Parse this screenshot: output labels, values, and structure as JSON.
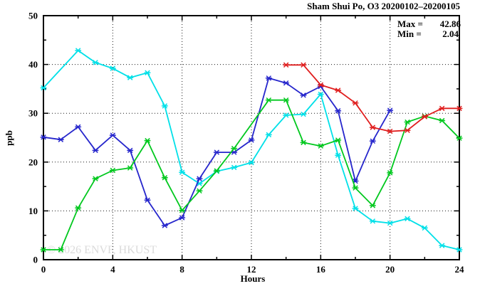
{
  "chart_data": {
    "type": "line",
    "title": "Sham Shui Po, O3 20200102–20200105",
    "xlabel": "Hours",
    "ylabel": "ppb",
    "xlim": [
      0,
      24
    ],
    "ylim": [
      0,
      50
    ],
    "x_major_ticks": [
      0,
      4,
      8,
      12,
      16,
      20,
      24
    ],
    "x_minor_step": 2,
    "y_major_ticks": [
      0,
      10,
      20,
      30,
      40,
      50
    ],
    "y_minor_step": 5,
    "grid": true,
    "legend_position": "none",
    "annotation": {
      "rows": [
        {
          "label": "Max =",
          "value": "42.86"
        },
        {
          "label": "Min =",
          "value": "2.04"
        }
      ]
    },
    "stats": {
      "max": 42.86,
      "min": 2.04
    },
    "watermark": "© 2026 ENVF, HKUST",
    "x": [
      0,
      1,
      2,
      3,
      4,
      5,
      6,
      7,
      8,
      9,
      10,
      11,
      12,
      13,
      14,
      15,
      16,
      17,
      18,
      19,
      20,
      21,
      22,
      23,
      24
    ],
    "series": [
      {
        "name": "series-cyan",
        "color": "#00e0e8",
        "values": [
          35.2,
          null,
          42.86,
          40.4,
          39.2,
          37.3,
          38.3,
          31.5,
          17.9,
          15.6,
          18.1,
          18.9,
          19.9,
          25.6,
          29.6,
          29.8,
          33.9,
          21.4,
          10.5,
          7.9,
          7.5,
          8.4,
          6.5,
          2.9,
          2.04
        ]
      },
      {
        "name": "series-blue",
        "color": "#2626cc",
        "values": [
          25.1,
          24.6,
          27.2,
          22.4,
          25.5,
          22.4,
          12.2,
          7.0,
          8.6,
          16.6,
          22.0,
          22.0,
          24.5,
          37.2,
          36.2,
          33.7,
          35.5,
          30.5,
          16.1,
          24.3,
          30.6,
          null,
          null,
          null,
          null
        ]
      },
      {
        "name": "series-green",
        "color": "#00c81e",
        "values": [
          2.04,
          2.04,
          10.6,
          16.6,
          18.3,
          18.8,
          24.4,
          16.8,
          10.1,
          14.1,
          18.2,
          22.8,
          null,
          32.7,
          32.7,
          24.0,
          23.3,
          24.5,
          14.7,
          11.1,
          17.8,
          28.2,
          29.4,
          28.5,
          24.9
        ]
      },
      {
        "name": "series-red",
        "color": "#e01d1d",
        "values": [
          null,
          null,
          null,
          null,
          null,
          null,
          null,
          null,
          null,
          null,
          null,
          null,
          null,
          null,
          39.9,
          39.9,
          35.8,
          34.7,
          32.1,
          27.1,
          26.3,
          26.5,
          29.3,
          31.0,
          31.0
        ]
      }
    ]
  }
}
